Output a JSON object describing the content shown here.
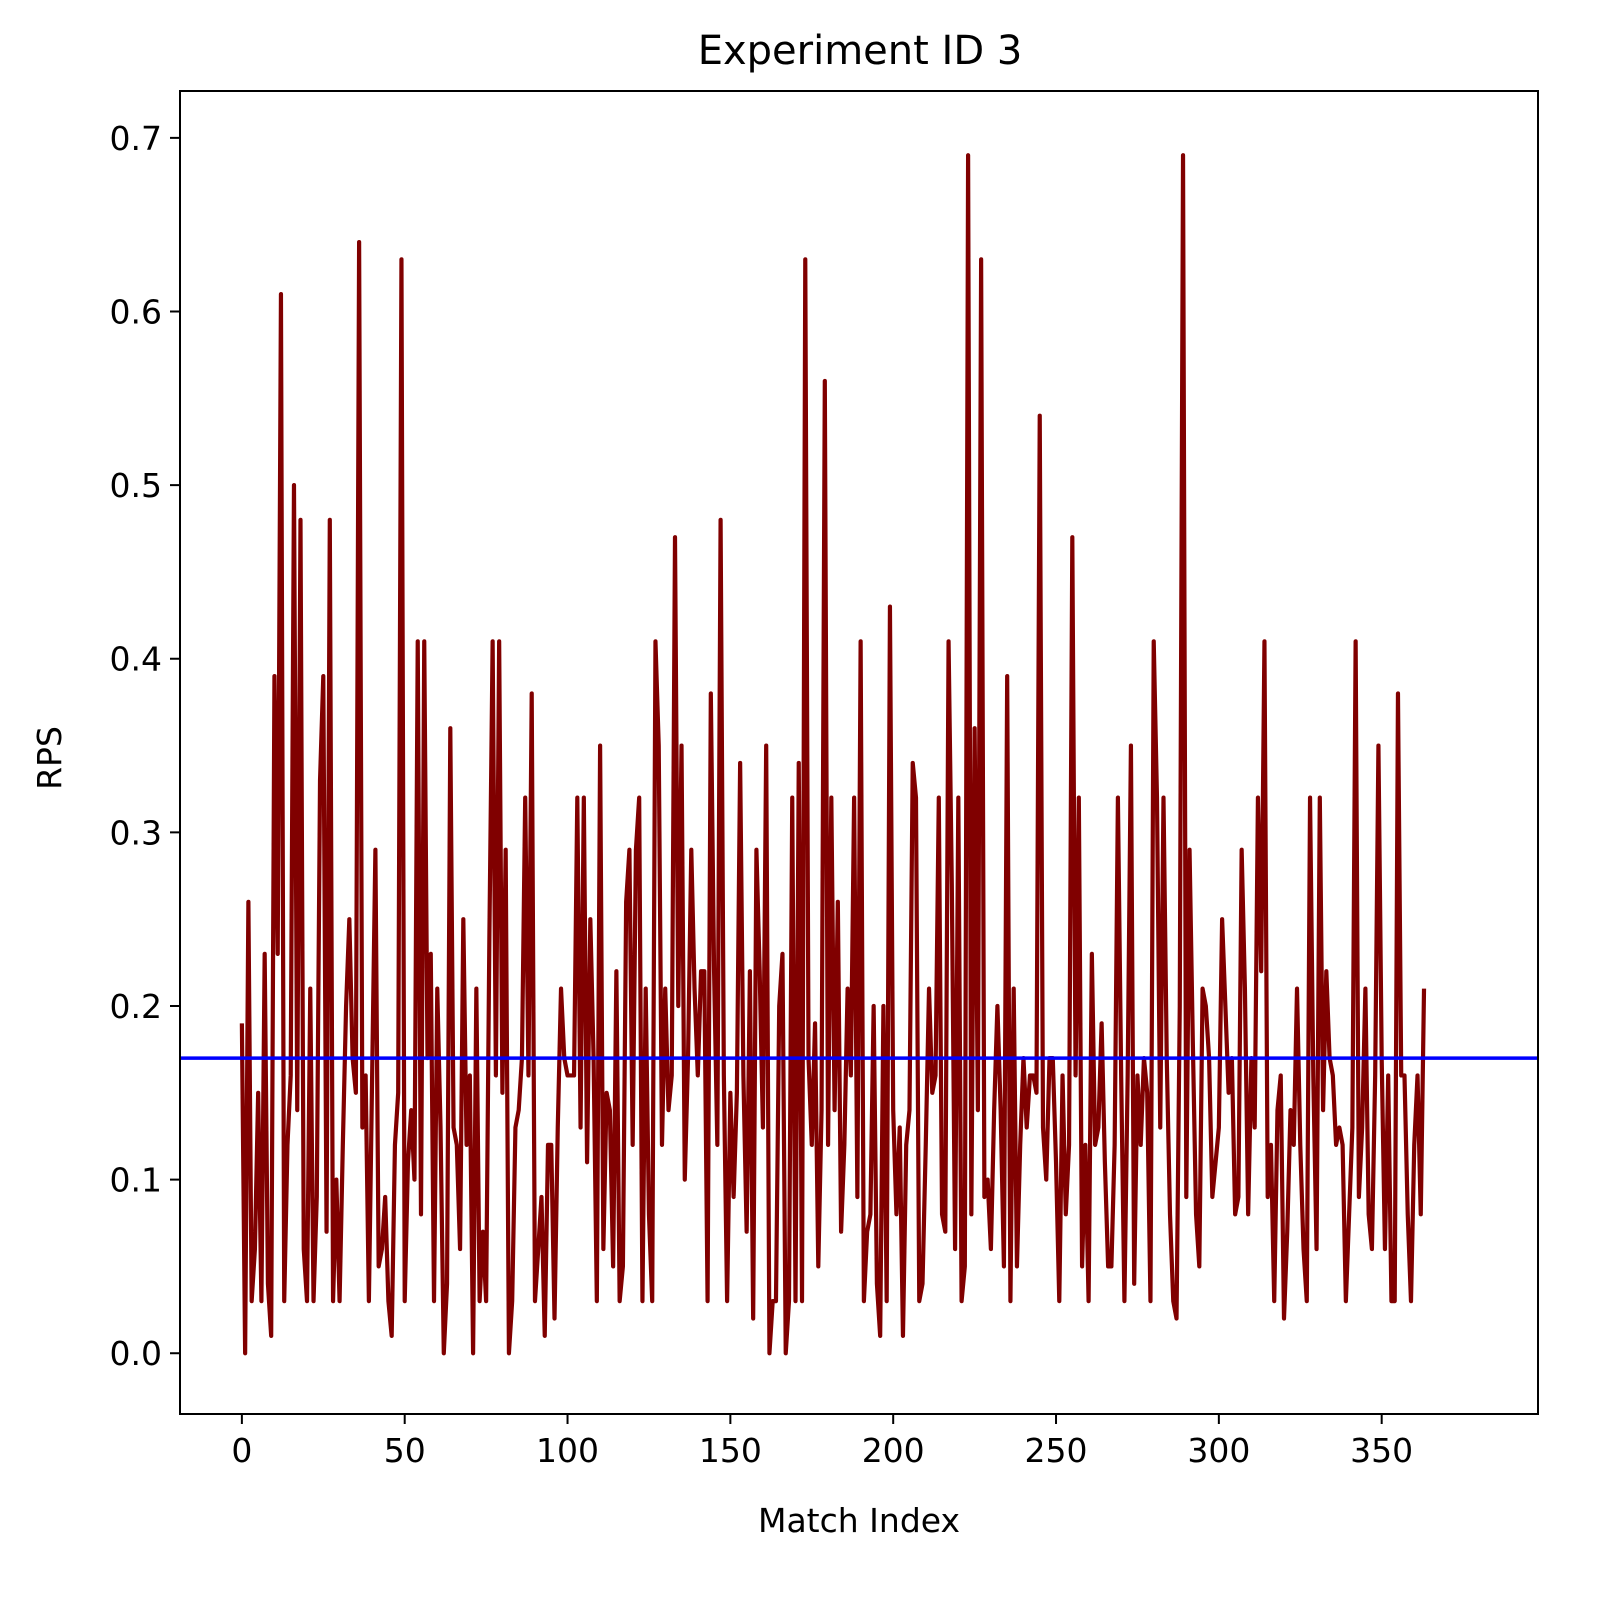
{
  "chart_data": {
    "type": "line",
    "title": "Experiment ID 3",
    "xlabel": "Match Index",
    "ylabel": "RPS",
    "xlim": [
      -19,
      398
    ],
    "ylim": [
      -0.035,
      0.727
    ],
    "xticks": [
      0,
      50,
      100,
      150,
      200,
      250,
      300,
      350
    ],
    "yticks": [
      0.0,
      0.1,
      0.2,
      0.3,
      0.4,
      0.5,
      0.6,
      0.7
    ],
    "xtick_labels": [
      "0",
      "50",
      "100",
      "150",
      "200",
      "250",
      "300",
      "350"
    ],
    "ytick_labels": [
      "0.0",
      "0.1",
      "0.2",
      "0.3",
      "0.4",
      "0.5",
      "0.6",
      "0.7"
    ],
    "grid": false,
    "series": [
      {
        "color": "#800000",
        "x_start": 0,
        "x_step": 1,
        "values": [
          0.19,
          0.0,
          0.26,
          0.03,
          0.06,
          0.15,
          0.03,
          0.23,
          0.04,
          0.01,
          0.39,
          0.23,
          0.61,
          0.03,
          0.12,
          0.16,
          0.5,
          0.14,
          0.48,
          0.06,
          0.03,
          0.21,
          0.03,
          0.09,
          0.33,
          0.39,
          0.07,
          0.48,
          0.03,
          0.1,
          0.03,
          0.12,
          0.2,
          0.25,
          0.17,
          0.15,
          0.64,
          0.13,
          0.16,
          0.03,
          0.16,
          0.29,
          0.05,
          0.06,
          0.09,
          0.03,
          0.01,
          0.12,
          0.15,
          0.63,
          0.03,
          0.11,
          0.14,
          0.1,
          0.41,
          0.08,
          0.41,
          0.17,
          0.23,
          0.03,
          0.21,
          0.13,
          0.0,
          0.04,
          0.36,
          0.13,
          0.12,
          0.06,
          0.25,
          0.12,
          0.16,
          0.0,
          0.21,
          0.03,
          0.07,
          0.03,
          0.24,
          0.41,
          0.16,
          0.41,
          0.15,
          0.29,
          0.0,
          0.03,
          0.13,
          0.14,
          0.17,
          0.32,
          0.16,
          0.38,
          0.03,
          0.06,
          0.09,
          0.01,
          0.12,
          0.12,
          0.02,
          0.13,
          0.21,
          0.17,
          0.16,
          0.16,
          0.16,
          0.32,
          0.13,
          0.32,
          0.11,
          0.25,
          0.17,
          0.03,
          0.35,
          0.06,
          0.15,
          0.14,
          0.05,
          0.22,
          0.03,
          0.05,
          0.26,
          0.29,
          0.12,
          0.29,
          0.32,
          0.03,
          0.21,
          0.08,
          0.03,
          0.41,
          0.35,
          0.12,
          0.21,
          0.14,
          0.16,
          0.47,
          0.2,
          0.35,
          0.1,
          0.17,
          0.29,
          0.21,
          0.16,
          0.22,
          0.22,
          0.03,
          0.38,
          0.22,
          0.12,
          0.48,
          0.16,
          0.03,
          0.15,
          0.09,
          0.15,
          0.34,
          0.16,
          0.07,
          0.22,
          0.02,
          0.29,
          0.22,
          0.13,
          0.35,
          0.0,
          0.03,
          0.03,
          0.2,
          0.23,
          0.0,
          0.03,
          0.32,
          0.03,
          0.34,
          0.03,
          0.63,
          0.17,
          0.12,
          0.19,
          0.05,
          0.14,
          0.56,
          0.12,
          0.32,
          0.14,
          0.26,
          0.07,
          0.12,
          0.21,
          0.16,
          0.32,
          0.09,
          0.41,
          0.03,
          0.07,
          0.08,
          0.2,
          0.04,
          0.01,
          0.2,
          0.03,
          0.43,
          0.14,
          0.08,
          0.13,
          0.01,
          0.12,
          0.14,
          0.34,
          0.32,
          0.03,
          0.04,
          0.12,
          0.21,
          0.15,
          0.16,
          0.32,
          0.08,
          0.07,
          0.41,
          0.27,
          0.06,
          0.32,
          0.03,
          0.05,
          0.69,
          0.08,
          0.36,
          0.14,
          0.63,
          0.09,
          0.1,
          0.06,
          0.14,
          0.2,
          0.14,
          0.05,
          0.39,
          0.03,
          0.21,
          0.05,
          0.12,
          0.17,
          0.13,
          0.16,
          0.16,
          0.15,
          0.54,
          0.13,
          0.1,
          0.17,
          0.17,
          0.11,
          0.03,
          0.16,
          0.08,
          0.12,
          0.47,
          0.16,
          0.32,
          0.05,
          0.12,
          0.03,
          0.23,
          0.12,
          0.13,
          0.19,
          0.11,
          0.05,
          0.05,
          0.12,
          0.32,
          0.16,
          0.03,
          0.16,
          0.35,
          0.04,
          0.16,
          0.12,
          0.17,
          0.15,
          0.03,
          0.41,
          0.32,
          0.13,
          0.32,
          0.17,
          0.08,
          0.03,
          0.02,
          0.2,
          0.69,
          0.09,
          0.29,
          0.18,
          0.08,
          0.05,
          0.21,
          0.2,
          0.17,
          0.09,
          0.11,
          0.13,
          0.25,
          0.2,
          0.15,
          0.17,
          0.08,
          0.09,
          0.29,
          0.21,
          0.08,
          0.17,
          0.13,
          0.32,
          0.22,
          0.41,
          0.09,
          0.12,
          0.03,
          0.14,
          0.16,
          0.02,
          0.07,
          0.14,
          0.12,
          0.21,
          0.12,
          0.06,
          0.03,
          0.32,
          0.16,
          0.06,
          0.32,
          0.14,
          0.22,
          0.17,
          0.16,
          0.12,
          0.13,
          0.12,
          0.03,
          0.08,
          0.13,
          0.41,
          0.09,
          0.13,
          0.21,
          0.08,
          0.06,
          0.16,
          0.35,
          0.17,
          0.06,
          0.16,
          0.03,
          0.03,
          0.38,
          0.16,
          0.16,
          0.08,
          0.03,
          0.12,
          0.16,
          0.08,
          0.21
        ]
      }
    ],
    "reference_lines": [
      {
        "orientation": "horizontal",
        "y": 0.17,
        "color": "#0000ff"
      }
    ]
  }
}
